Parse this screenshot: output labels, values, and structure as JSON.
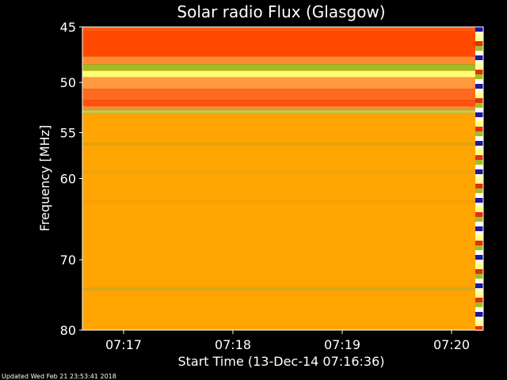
{
  "chart_data": {
    "type": "heatmap",
    "title": "Solar radio Flux (Glasgow)",
    "xlabel": "Start Time (13-Dec-14 07:16:36)",
    "ylabel": "Frequency [MHz]",
    "x_ticks": [
      "07:17",
      "07:18",
      "07:19",
      "07:20"
    ],
    "y_ticks": [
      45,
      50,
      55,
      60,
      70,
      80
    ],
    "ylim": [
      45,
      80
    ],
    "y_scale": "log",
    "footer": "Updated Wed Feb 21 23:53:41 2018",
    "frequency_bands": [
      {
        "from": 45.0,
        "to": 45.4,
        "color": "#ff5a10"
      },
      {
        "from": 45.4,
        "to": 47.6,
        "color": "#ff4a00"
      },
      {
        "from": 47.6,
        "to": 48.3,
        "color": "#ff8c30"
      },
      {
        "from": 48.3,
        "to": 48.9,
        "color": "#a8b820"
      },
      {
        "from": 48.9,
        "to": 49.5,
        "color": "#ffff70"
      },
      {
        "from": 49.5,
        "to": 50.6,
        "color": "#ff9a40"
      },
      {
        "from": 50.6,
        "to": 51.7,
        "color": "#ff6a20"
      },
      {
        "from": 51.7,
        "to": 52.3,
        "color": "#ff5010"
      },
      {
        "from": 52.3,
        "to": 52.7,
        "color": "#ff8a30"
      },
      {
        "from": 52.7,
        "to": 53.0,
        "color": "#c8d050"
      },
      {
        "from": 53.0,
        "to": 80.0,
        "color": "#ffa400"
      }
    ],
    "streaks": [
      {
        "freq": 56.2,
        "color": "#c8a010"
      },
      {
        "freq": 59.3,
        "color": "#d8a420"
      },
      {
        "freq": 62.7,
        "color": "#f09a10"
      },
      {
        "freq": 74.0,
        "color": "#b8a830"
      }
    ],
    "right_strip_colors": [
      "#1a1aa0",
      "#ffffff",
      "#ffffc0",
      "#e03010",
      "#ffff80",
      "#a0c020"
    ]
  }
}
